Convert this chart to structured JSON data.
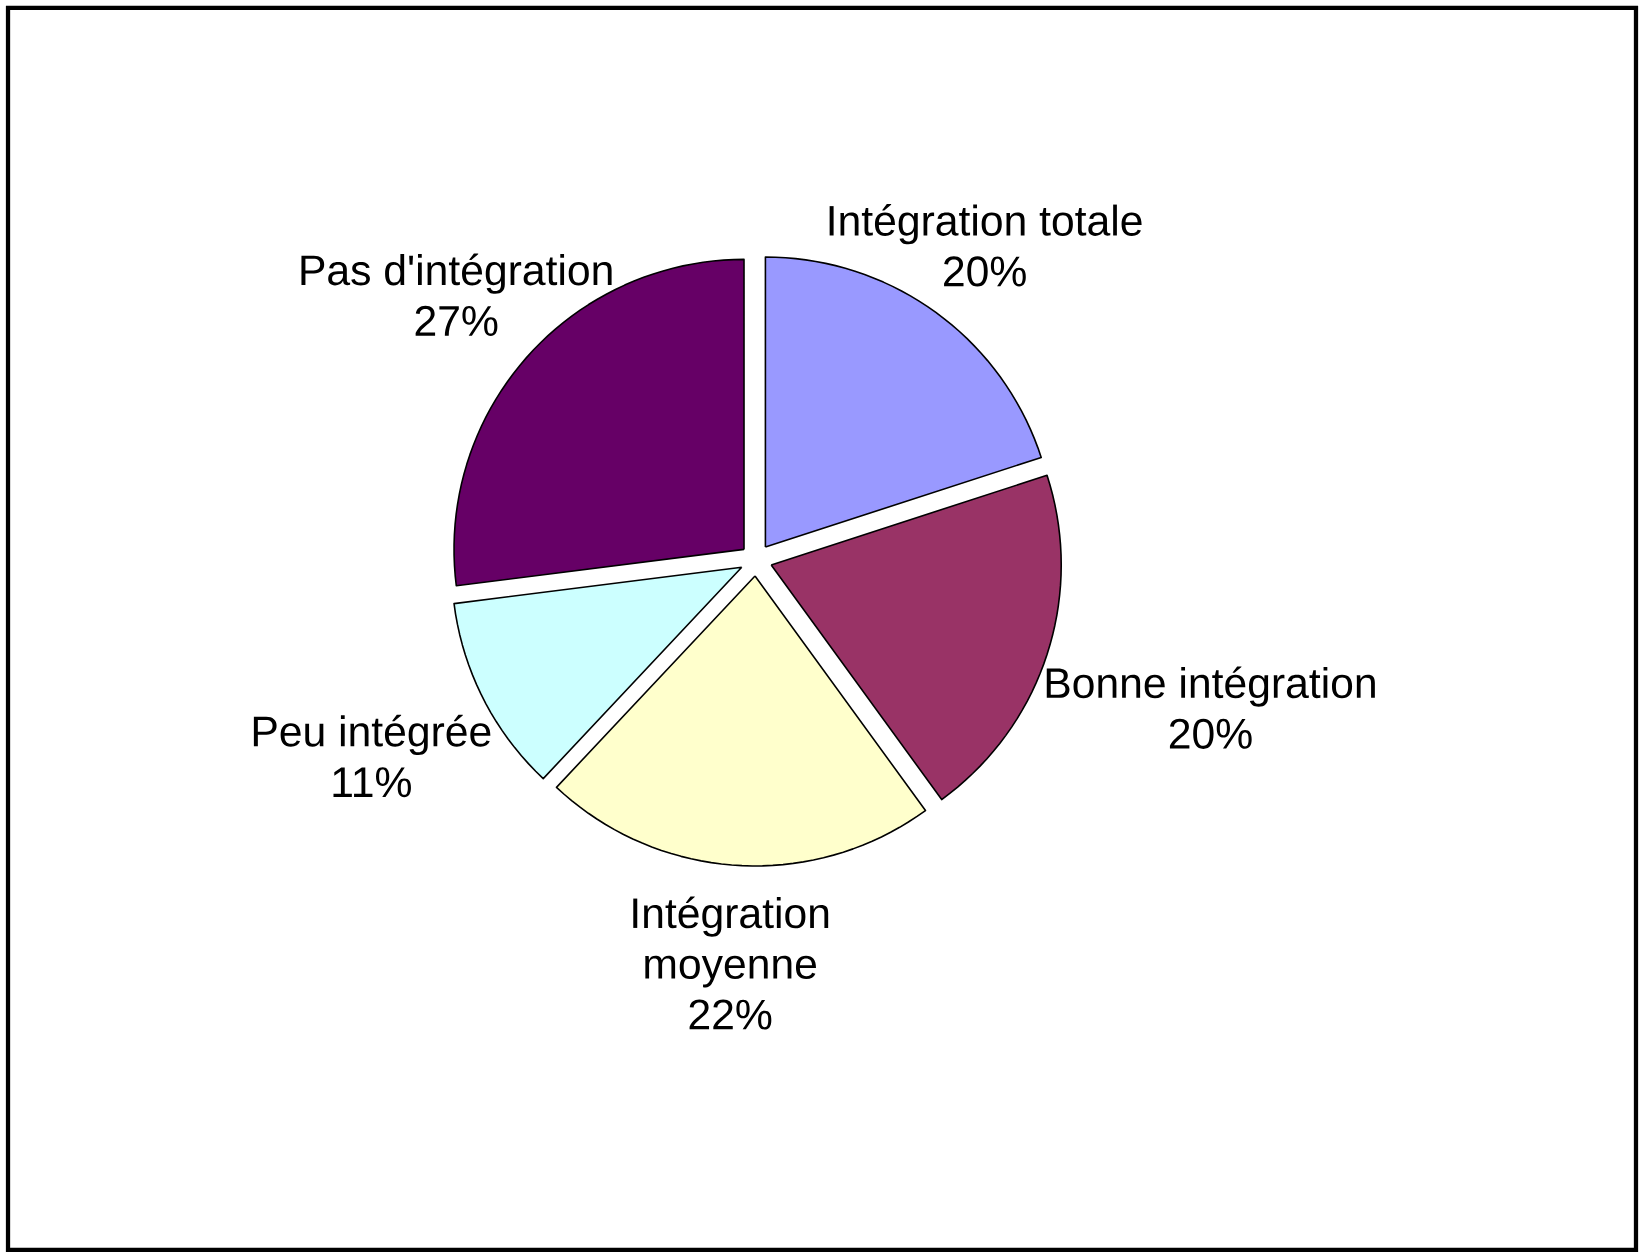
{
  "chart_data": {
    "type": "pie",
    "categories": [
      "Intégration totale",
      "Bonne intégration",
      "Intégration moyenne",
      "Peu intégrée",
      "Pas d'intégration"
    ],
    "values": [
      20,
      20,
      22,
      11,
      27
    ],
    "value_labels": [
      "20%",
      "20%",
      "22%",
      "11%",
      "27%"
    ],
    "colors": [
      "#9999ff",
      "#993366",
      "#ffffcc",
      "#ccffff",
      "#660066"
    ]
  }
}
